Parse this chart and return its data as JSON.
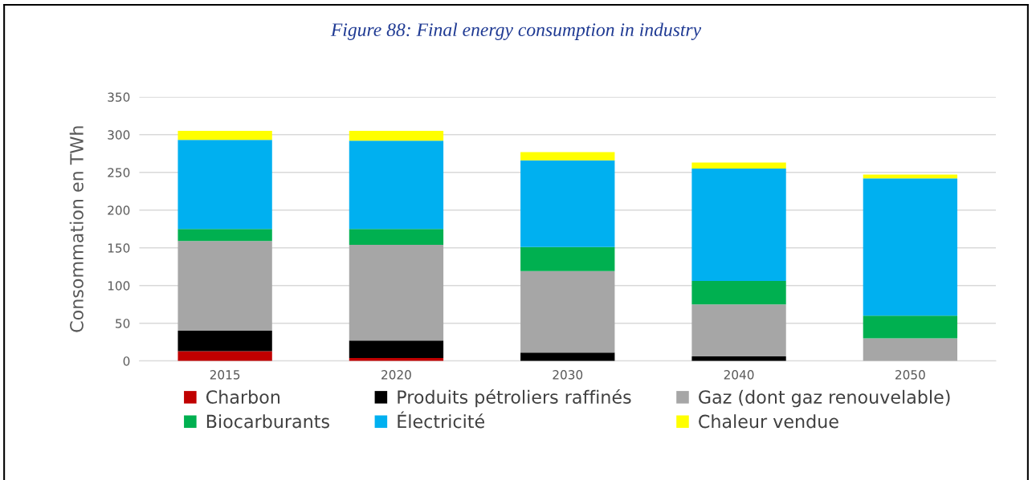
{
  "chart_data": {
    "type": "bar",
    "title": "Figure 88: Final energy consumption in industry",
    "ylabel": "Consommation en TWh",
    "categories": [
      "2015",
      "2020",
      "2030",
      "2040",
      "2050"
    ],
    "stacked": true,
    "ylim": [
      0,
      350
    ],
    "yticks": [
      0,
      50,
      100,
      150,
      200,
      250,
      300,
      350
    ],
    "grid": "y",
    "legend": "bottom",
    "series": [
      {
        "name": "Charbon",
        "color": "#c00000",
        "values": [
          13,
          4,
          0,
          0,
          0
        ]
      },
      {
        "name": "Produits pétroliers raffinés",
        "color": "#000000",
        "values": [
          27,
          23,
          11,
          6,
          0
        ]
      },
      {
        "name": "Gaz (dont gaz renouvelable)",
        "color": "#a6a6a6",
        "values": [
          119,
          127,
          108,
          69,
          30
        ]
      },
      {
        "name": "Biocarburants",
        "color": "#00b050",
        "values": [
          16,
          21,
          32,
          31,
          30
        ]
      },
      {
        "name": "Électricité",
        "color": "#00b0f0",
        "values": [
          118,
          117,
          115,
          149,
          182
        ]
      },
      {
        "name": "Chaleur vendue",
        "color": "#ffff00",
        "values": [
          12,
          13,
          11,
          8,
          5
        ]
      }
    ]
  }
}
